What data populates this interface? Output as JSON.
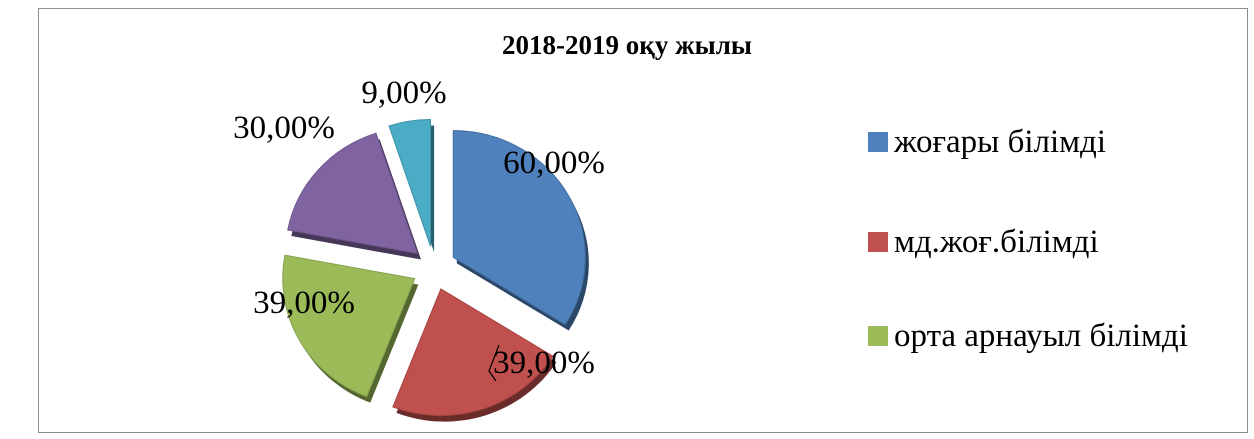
{
  "chart_data": {
    "type": "pie",
    "title": "2018-2019  оқу жылы",
    "exploded": true,
    "slices": [
      {
        "label": "жоғары білімді",
        "value": 60,
        "display": "60,00%",
        "color": "#4f81bd",
        "in_legend": true
      },
      {
        "label": "мд.жоғ.білімді",
        "value": 39,
        "display": "39,00%",
        "color": "#c0504d",
        "in_legend": true
      },
      {
        "label": "орта арнауыл білімді",
        "value": 39,
        "display": "39,00%",
        "color": "#9bbb59",
        "in_legend": true
      },
      {
        "label": "",
        "value": 30,
        "display": "30,00%",
        "color": "#8064a2",
        "in_legend": false
      },
      {
        "label": "",
        "value": 9,
        "display": "9,00%",
        "color": "#4bacc6",
        "in_legend": false
      }
    ],
    "legend_position": "right"
  }
}
